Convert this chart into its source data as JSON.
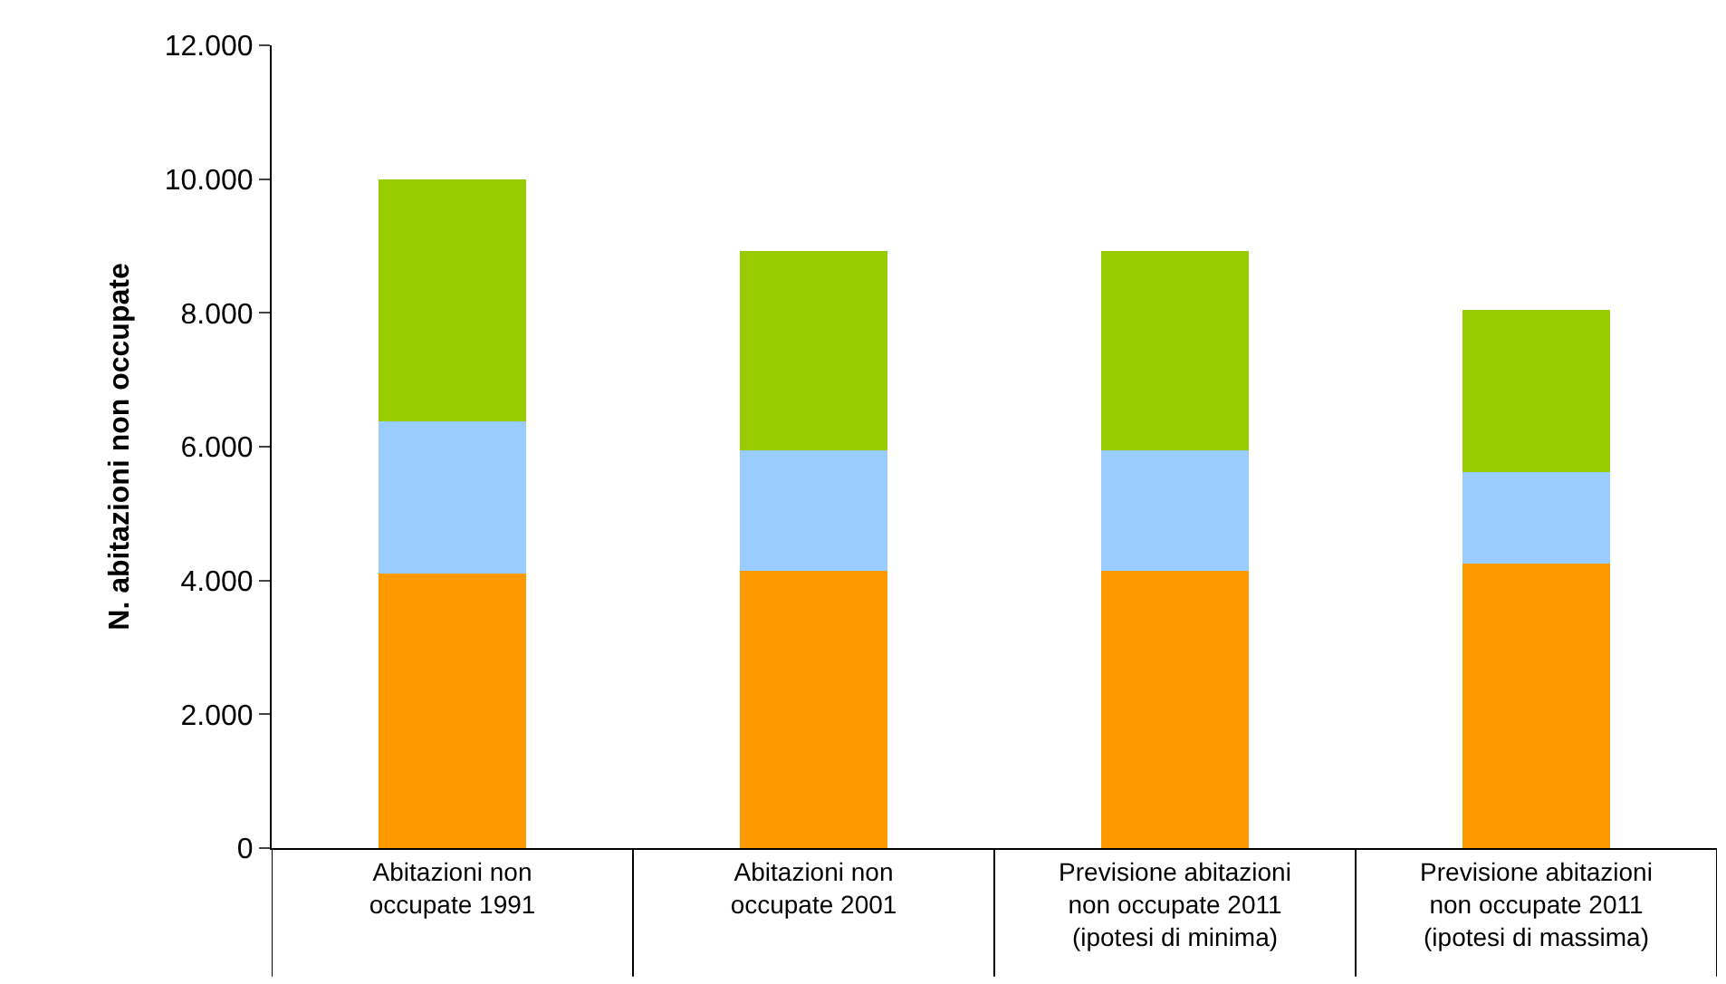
{
  "chart_data": {
    "type": "bar",
    "stacked": true,
    "ylabel": "N. abitazioni non occupate",
    "categories": [
      "Abitazioni non occupate 1991",
      "Abitazioni non occupate 2001",
      "Previsione abitazioni non occupate 2011 (ipotesi di minima)",
      "Previsione abitazioni non occupate 2011 (ipotesi di massima)"
    ],
    "series": [
      {
        "color": "#ff9900",
        "values": [
          4100,
          4150,
          4150,
          4250
        ]
      },
      {
        "color": "#99ccff",
        "values": [
          2280,
          1800,
          1800,
          1370
        ]
      },
      {
        "color": "#99cc00",
        "values": [
          3620,
          2970,
          2970,
          2430
        ]
      }
    ],
    "ylim": [
      0,
      12000
    ],
    "yticks": [
      0,
      {
        "value": 2000,
        "label": "2.000"
      },
      {
        "value": 4000,
        "label": "4.000"
      },
      {
        "value": 6000,
        "label": "6.000"
      },
      {
        "value": 8000,
        "label": "8.000"
      },
      {
        "value": 10000,
        "label": "10.000"
      },
      {
        "value": 12000,
        "label": "12.000"
      }
    ]
  }
}
